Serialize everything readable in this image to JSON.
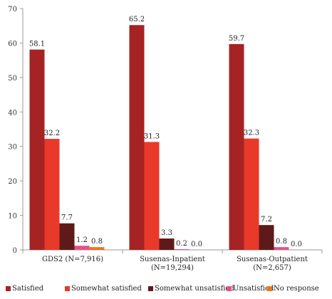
{
  "chart_data": {
    "type": "bar",
    "categories": [
      [
        "GDS2 (N=7,916)"
      ],
      [
        "Susenas-Inpatient",
        "(N=19,294)"
      ],
      [
        "Susenas-Outpatient",
        "(N=2,657)"
      ]
    ],
    "series": [
      {
        "name": "Satisfied",
        "color": "#a52323",
        "values": [
          58.1,
          65.2,
          59.7
        ],
        "labels": [
          "58.1",
          "65.2",
          "59.7"
        ]
      },
      {
        "name": "Somewhat satisfied",
        "color": "#e8392a",
        "values": [
          32.2,
          31.3,
          32.3
        ],
        "labels": [
          "32.2",
          "31.3",
          "32.3"
        ]
      },
      {
        "name": "Somewhat unsatisfied",
        "color": "#5e1a1a",
        "values": [
          7.7,
          3.3,
          7.2
        ],
        "labels": [
          "7.7",
          "3.3",
          "7.2"
        ]
      },
      {
        "name": "Unsatisfied",
        "color": "#e8508a",
        "values": [
          1.2,
          0.2,
          0.8
        ],
        "labels": [
          "1.2",
          "0.2",
          "0.8"
        ]
      },
      {
        "name": "No response",
        "color": "#e8781e",
        "values": [
          0.8,
          0.0,
          0.0
        ],
        "labels": [
          "0.8",
          "0.0",
          "0.0"
        ]
      }
    ],
    "ylim": [
      0,
      70
    ],
    "yticks": [
      0,
      10,
      20,
      30,
      40,
      50,
      60,
      70
    ],
    "grid": false,
    "legend_position": "bottom",
    "title": "",
    "xlabel": "",
    "ylabel": ""
  }
}
